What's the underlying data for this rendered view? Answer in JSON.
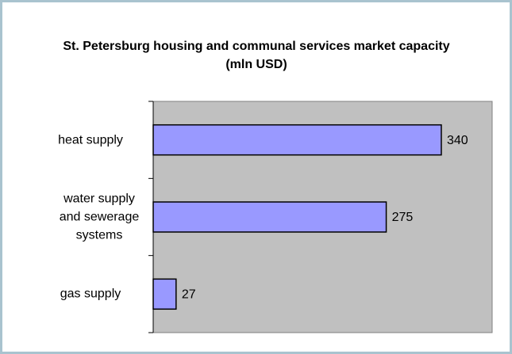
{
  "chart_data": {
    "type": "bar",
    "orientation": "horizontal",
    "title": "St. Petersburg housing and communal services market capacity (mln USD)",
    "categories": [
      "heat supply",
      "water supply and sewerage systems",
      "gas supply"
    ],
    "values": [
      340,
      275,
      27
    ],
    "color": "#9999ff",
    "xlim": [
      0,
      400
    ]
  }
}
